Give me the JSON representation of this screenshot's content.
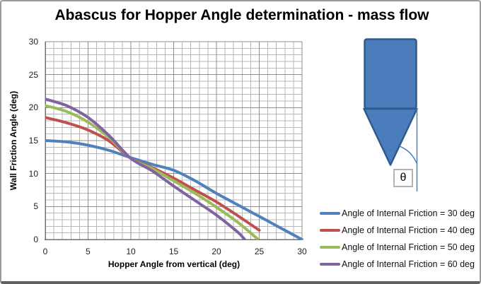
{
  "chart_data": {
    "type": "line",
    "title": "Abascus for Hopper Angle determination - mass flow",
    "xlabel": "Hopper Angle from vertical (deg)",
    "ylabel": "Wall Friction Angle (deg)",
    "xlim": [
      0,
      30
    ],
    "ylim": [
      0,
      30
    ],
    "xticks": [
      0,
      5,
      10,
      15,
      20,
      25,
      30
    ],
    "yticks": [
      0,
      5,
      10,
      15,
      20,
      25,
      30
    ],
    "grid": {
      "minor_step": 1,
      "major_step": 5,
      "minor_color": "#b7b7b7",
      "major_color": "#8f8f8f"
    },
    "axis_color": "#6f6f6f",
    "legend_position": "right",
    "series": [
      {
        "name": "Angle of Internal Friction = 30 deg",
        "color": "#4F81BD",
        "x": [
          0,
          2.5,
          5,
          7.5,
          10,
          12.5,
          15,
          17.5,
          20,
          22.5,
          25,
          27.5,
          30
        ],
        "y": [
          15,
          14.8,
          14.3,
          13.5,
          12.4,
          11.4,
          10.5,
          8.9,
          7.0,
          5.25,
          3.5,
          1.75,
          0
        ]
      },
      {
        "name": "Angle of Internal Friction = 40 deg",
        "color": "#C0504D",
        "x": [
          0,
          2.5,
          5,
          7.5,
          10,
          12.5,
          15,
          17.5,
          20,
          22.5,
          25
        ],
        "y": [
          18.5,
          17.7,
          16.6,
          14.9,
          12.3,
          10.9,
          9.3,
          7.5,
          5.7,
          3.6,
          1.4
        ]
      },
      {
        "name": "Angle of Internal Friction = 50 deg",
        "color": "#9BBB59",
        "x": [
          0,
          2.5,
          5,
          7.5,
          10,
          12.5,
          15,
          17.5,
          20,
          22.5,
          24.8
        ],
        "y": [
          20.3,
          19.4,
          17.8,
          15.4,
          12.3,
          10.75,
          8.9,
          7.0,
          4.9,
          2.6,
          0.1
        ]
      },
      {
        "name": "Angle of Internal Friction = 60 deg",
        "color": "#8064A2",
        "x": [
          0,
          2.5,
          5,
          7.5,
          10,
          12.5,
          15,
          17.5,
          20,
          22.5,
          23.3
        ],
        "y": [
          21.3,
          20.3,
          18.5,
          15.7,
          12.3,
          10.4,
          8.1,
          5.9,
          3.7,
          1.1,
          0
        ]
      }
    ]
  },
  "diagram": {
    "theta_label": "θ",
    "fill": "#4B7CBC",
    "stroke": "#2E5A8C",
    "line_color": "#4F81BD"
  }
}
